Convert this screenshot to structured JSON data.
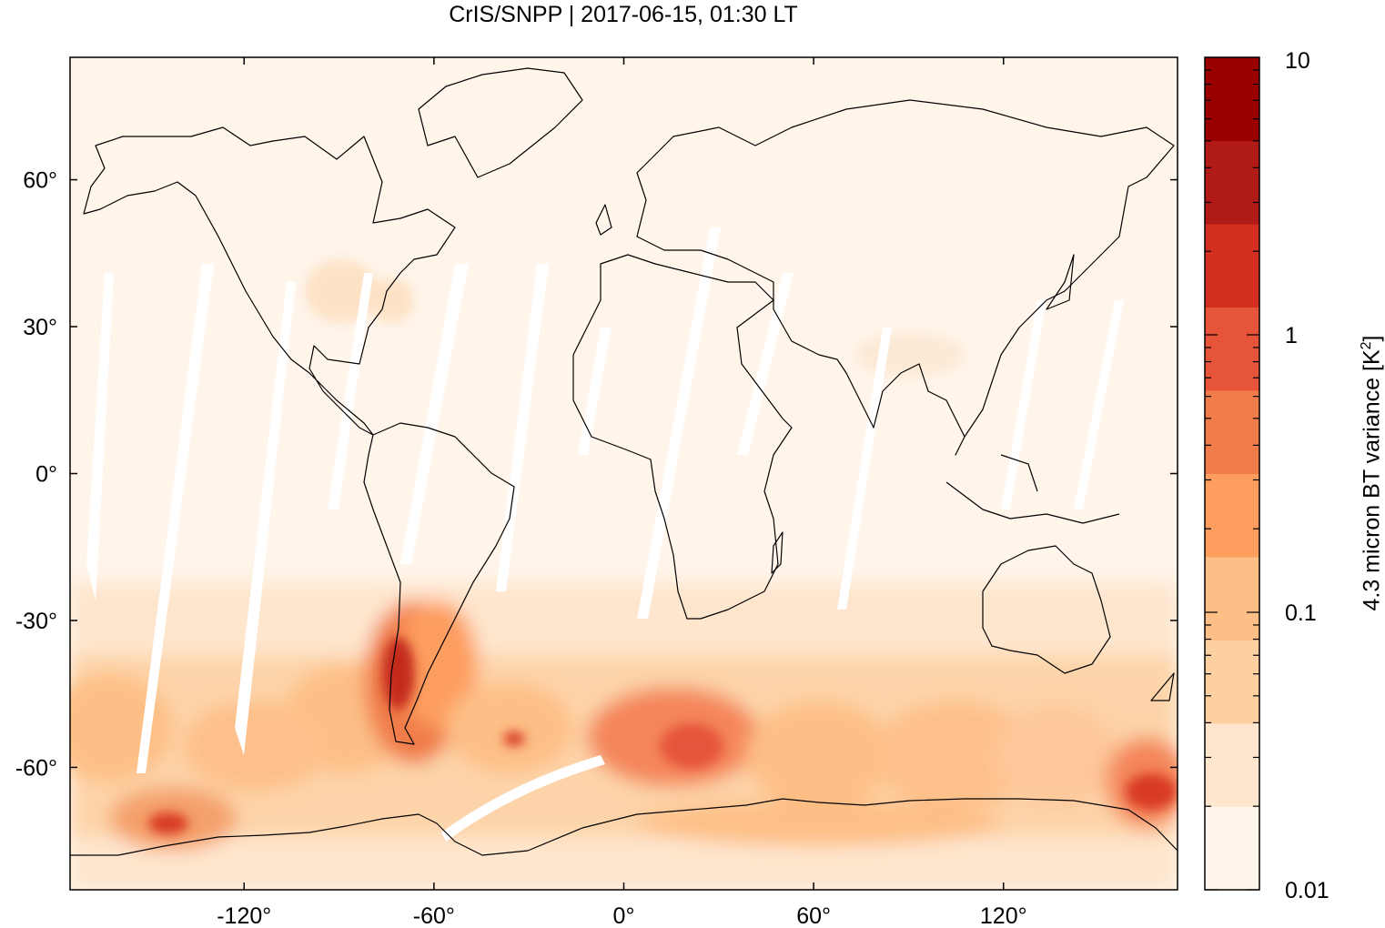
{
  "title": "CrIS/SNPP | 2017-06-15, 01:30 LT",
  "chart_data": {
    "type": "heatmap",
    "projection": "equirectangular world map",
    "x_axis": {
      "ticks": [
        -120,
        -60,
        0,
        60,
        120
      ],
      "tick_labels": [
        "-120°",
        "-60°",
        "0°",
        "60°",
        "120°"
      ],
      "range": [
        -175,
        175
      ]
    },
    "y_axis": {
      "ticks": [
        60,
        30,
        0,
        -30,
        -60
      ],
      "tick_labels": [
        "60°",
        "30°",
        "0°",
        "-30°",
        "-60°"
      ],
      "range": [
        -85,
        85
      ]
    },
    "colorbar": {
      "label": "4.3 micron BT variance [K²]",
      "label_main": "4.3 micron BT variance [K",
      "label_sup": "2",
      "label_end": "]",
      "scale": "log",
      "range": [
        0.01,
        10
      ],
      "tick_labels": [
        "10",
        "1",
        "0.1",
        "0.01"
      ],
      "bands": [
        "#fff5eb",
        "#fee6ce",
        "#fdd0a2",
        "#fdbf86",
        "#fd9d5e",
        "#f07c4a",
        "#e6553a",
        "#d32f20",
        "#b01a17",
        "#990000"
      ]
    },
    "overview": "Low variance (<0.05 K²) over most of the globe; elevated variance (0.1–5 K²) across the Southern Ocean band 40°S–75°S, peaking near southern Andes (~70°W, 40°S), south of Africa (~15°E, 55°S), and near 150°E, 65°S. Diagonal white gaps mark missing swaths between satellite orbits."
  }
}
